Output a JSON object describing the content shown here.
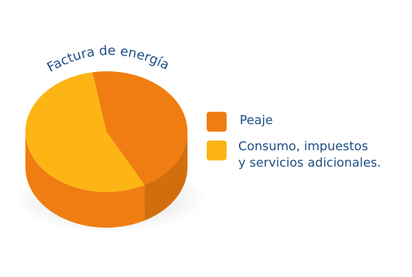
{
  "chart_data": {
    "type": "pie",
    "title": "Factura de energía",
    "categories": [
      "Peaje",
      "Consumo, impuestos\ny servicios adicionales."
    ],
    "values": [
      45,
      55
    ],
    "colors": [
      "#f07d11",
      "#fdb515"
    ]
  }
}
